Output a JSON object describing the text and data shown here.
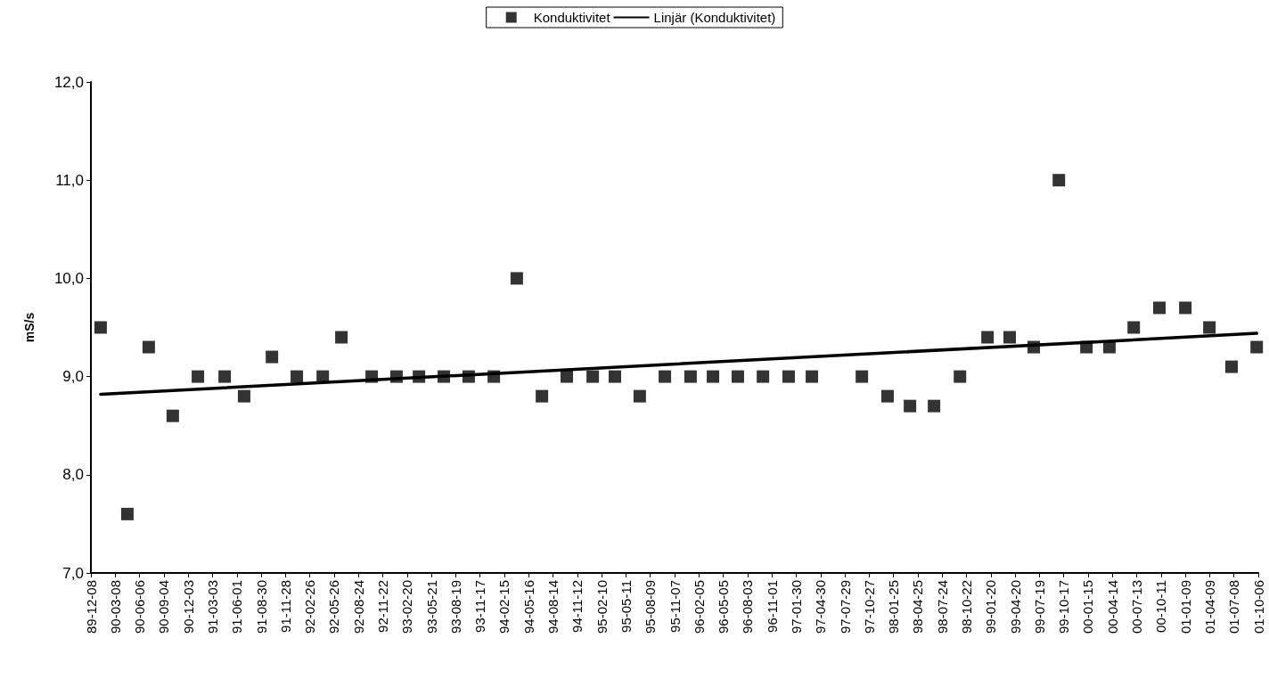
{
  "chart_data": {
    "type": "scatter",
    "ylabel": "mS/s",
    "x": [
      "1990-01-13",
      "1990-04-22",
      "1990-07-10",
      "1990-10-07",
      "1991-01-08",
      "1991-04-17",
      "1991-06-28",
      "1991-10-09",
      "1992-01-09",
      "1992-04-14",
      "1992-06-22",
      "1992-10-12",
      "1993-01-12",
      "1993-04-05",
      "1993-07-06",
      "1993-10-06",
      "1994-01-07",
      "1994-04-02",
      "1994-07-04",
      "1994-10-04",
      "1995-01-08",
      "1995-03-31",
      "1995-07-01",
      "1995-10-02",
      "1996-01-05",
      "1996-03-28",
      "1996-06-28",
      "1996-09-29",
      "1997-01-02",
      "1997-03-29",
      "1997-09-30",
      "1998-01-03",
      "1998-03-27",
      "1998-06-24",
      "1998-09-28",
      "1999-01-08",
      "1999-03-31",
      "1999-06-28",
      "1999-09-29",
      "2000-01-09",
      "2000-04-03",
      "2000-07-02",
      "2000-10-05",
      "2001-01-09",
      "2001-04-08",
      "2001-06-29",
      "2001-09-30"
    ],
    "series": [
      {
        "name": "Konduktivitet",
        "type": "scatter",
        "color": "#000000",
        "marker": "square",
        "values": [
          9.5,
          7.6,
          9.3,
          8.6,
          9.0,
          9.0,
          8.8,
          9.2,
          9.0,
          9.0,
          9.4,
          9.0,
          9.0,
          9.0,
          9.0,
          9.0,
          9.0,
          10.0,
          8.8,
          9.0,
          9.0,
          9.0,
          8.8,
          9.0,
          9.0,
          9.0,
          9.0,
          9.0,
          9.0,
          9.0,
          9.0,
          8.8,
          8.7,
          8.7,
          9.0,
          9.4,
          9.4,
          9.3,
          11.0,
          9.3,
          9.3,
          9.5,
          9.7,
          9.7,
          9.5,
          9.1,
          9.3
        ]
      },
      {
        "name": "Linjär (Konduktivitet)",
        "type": "line",
        "color": "#000000",
        "marker": "none",
        "line_style": "solid",
        "x": [
          "1990-01-13",
          "2001-09-30"
        ],
        "values": [
          8.82,
          9.44
        ]
      }
    ],
    "xlim": [
      "1989-12-08",
      "2001-10-06"
    ],
    "xticks": [
      {
        "value": "1989-12-08",
        "label": "89-12-08"
      },
      {
        "value": "1990-03-08",
        "label": "90-03-08"
      },
      {
        "value": "1990-06-06",
        "label": "90-06-06"
      },
      {
        "value": "1990-09-04",
        "label": "90-09-04"
      },
      {
        "value": "1990-12-03",
        "label": "90-12-03"
      },
      {
        "value": "1991-03-03",
        "label": "91-03-03"
      },
      {
        "value": "1991-06-01",
        "label": "91-06-01"
      },
      {
        "value": "1991-08-30",
        "label": "91-08-30"
      },
      {
        "value": "1991-11-28",
        "label": "91-11-28"
      },
      {
        "value": "1992-02-26",
        "label": "92-02-26"
      },
      {
        "value": "1992-05-26",
        "label": "92-05-26"
      },
      {
        "value": "1992-08-24",
        "label": "92-08-24"
      },
      {
        "value": "1992-11-22",
        "label": "92-11-22"
      },
      {
        "value": "1993-02-20",
        "label": "93-02-20"
      },
      {
        "value": "1993-05-21",
        "label": "93-05-21"
      },
      {
        "value": "1993-08-19",
        "label": "93-08-19"
      },
      {
        "value": "1993-11-17",
        "label": "93-11-17"
      },
      {
        "value": "1994-02-15",
        "label": "94-02-15"
      },
      {
        "value": "1994-05-16",
        "label": "94-05-16"
      },
      {
        "value": "1994-08-14",
        "label": "94-08-14"
      },
      {
        "value": "1994-11-12",
        "label": "94-11-12"
      },
      {
        "value": "1995-02-10",
        "label": "95-02-10"
      },
      {
        "value": "1995-05-11",
        "label": "95-05-11"
      },
      {
        "value": "1995-08-09",
        "label": "95-08-09"
      },
      {
        "value": "1995-11-07",
        "label": "95-11-07"
      },
      {
        "value": "1996-02-05",
        "label": "96-02-05"
      },
      {
        "value": "1996-05-05",
        "label": "96-05-05"
      },
      {
        "value": "1996-08-03",
        "label": "96-08-03"
      },
      {
        "value": "1996-11-01",
        "label": "96-11-01"
      },
      {
        "value": "1997-01-30",
        "label": "97-01-30"
      },
      {
        "value": "1997-04-30",
        "label": "97-04-30"
      },
      {
        "value": "1997-07-29",
        "label": "97-07-29"
      },
      {
        "value": "1997-10-27",
        "label": "97-10-27"
      },
      {
        "value": "1998-01-25",
        "label": "98-01-25"
      },
      {
        "value": "1998-04-25",
        "label": "98-04-25"
      },
      {
        "value": "1998-07-24",
        "label": "98-07-24"
      },
      {
        "value": "1998-10-22",
        "label": "98-10-22"
      },
      {
        "value": "1999-01-20",
        "label": "99-01-20"
      },
      {
        "value": "1999-04-20",
        "label": "99-04-20"
      },
      {
        "value": "1999-07-19",
        "label": "99-07-19"
      },
      {
        "value": "1999-10-17",
        "label": "99-10-17"
      },
      {
        "value": "2000-01-15",
        "label": "00-01-15"
      },
      {
        "value": "2000-04-14",
        "label": "00-04-14"
      },
      {
        "value": "2000-07-13",
        "label": "00-07-13"
      },
      {
        "value": "2000-10-11",
        "label": "00-10-11"
      },
      {
        "value": "2001-01-09",
        "label": "01-01-09"
      },
      {
        "value": "2001-04-09",
        "label": "01-04-09"
      },
      {
        "value": "2001-07-08",
        "label": "01-07-08"
      },
      {
        "value": "2001-10-06",
        "label": "01-10-06"
      }
    ],
    "ylim": [
      7,
      12
    ],
    "yticks": [
      {
        "value": 7,
        "label": "7,0"
      },
      {
        "value": 8,
        "label": "8,0"
      },
      {
        "value": 9,
        "label": "9,0"
      },
      {
        "value": 10,
        "label": "10,0"
      },
      {
        "value": 11,
        "label": "11,0"
      },
      {
        "value": 12,
        "label": "12,0"
      }
    ],
    "grid": false,
    "legend": "top"
  }
}
